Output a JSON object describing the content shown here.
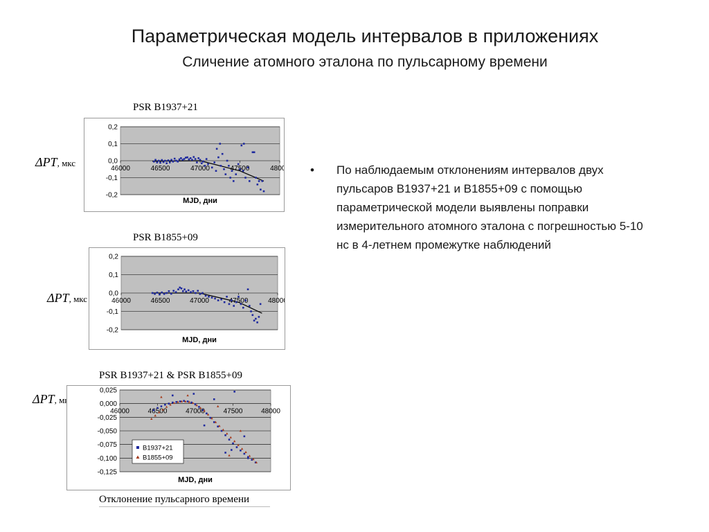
{
  "slide": {
    "title": "Параметрическая модель интервалов в приложениях",
    "subtitle": "Сличение атомного эталона по пульсарному времени",
    "bullet_char": "•",
    "bullet": "По наблюдаемым отклонениям интервалов двух пульсаров B1937+21 и B1855+09 с помощью параметрической модели выявлены поправки измерительного атомного эталона с погрешностью 5-10 нс в 4-летнем промежутке наблюдений",
    "caption": "Отклонение пульсарного времени",
    "ylabel_symbol": "ΔPT",
    "ylabel_unit": ", мкс"
  },
  "colors": {
    "plot_bg": "#c0c0c0",
    "frame": "#9a9a9a",
    "series1": "#1f2a9e",
    "series2": "#a63a1a",
    "trend": "#000000"
  },
  "chart_data": [
    {
      "type": "scatter",
      "title": "PSR B1937+21",
      "xlabel": "MJD, дни",
      "xlim": [
        46000,
        48000
      ],
      "ylim": [
        -0.2,
        0.2
      ],
      "x_ticks": [
        "46000",
        "46500",
        "47000",
        "47500",
        "48000"
      ],
      "y_ticks": [
        "0,2",
        "0,1",
        "0,0",
        "-0,1",
        "-0,2"
      ],
      "grid": true,
      "series": [
        {
          "points": [
            [
              46420,
              -0.005
            ],
            [
              46440,
              0.005
            ],
            [
              46460,
              -0.01
            ],
            [
              46480,
              0.0
            ],
            [
              46500,
              -0.012
            ],
            [
              46520,
              0.004
            ],
            [
              46540,
              -0.008
            ],
            [
              46560,
              0.0
            ],
            [
              46580,
              -0.015
            ],
            [
              46600,
              0.002
            ],
            [
              46620,
              -0.01
            ],
            [
              46640,
              0.005
            ],
            [
              46660,
              -0.005
            ],
            [
              46680,
              0.012
            ],
            [
              46700,
              0.0
            ],
            [
              46720,
              -0.005
            ],
            [
              46740,
              0.008
            ],
            [
              46760,
              0.015
            ],
            [
              46780,
              0.005
            ],
            [
              46800,
              0.01
            ],
            [
              46820,
              0.018
            ],
            [
              46840,
              0.02
            ],
            [
              46860,
              0.008
            ],
            [
              46880,
              0.015
            ],
            [
              46900,
              0.005
            ],
            [
              46920,
              0.022
            ],
            [
              46940,
              0.01
            ],
            [
              46960,
              -0.01
            ],
            [
              46980,
              0.015
            ],
            [
              47000,
              0.005
            ],
            [
              47020,
              -0.015
            ],
            [
              47040,
              -0.005
            ],
            [
              47060,
              -0.03
            ],
            [
              47080,
              0.01
            ],
            [
              47100,
              -0.02
            ],
            [
              47150,
              -0.04
            ],
            [
              47180,
              -0.01
            ],
            [
              47200,
              -0.06
            ],
            [
              47210,
              0.07
            ],
            [
              47230,
              0.02
            ],
            [
              47250,
              0.1
            ],
            [
              47260,
              -0.03
            ],
            [
              47280,
              0.04
            ],
            [
              47300,
              -0.05
            ],
            [
              47320,
              -0.08
            ],
            [
              47340,
              0.0
            ],
            [
              47360,
              -0.03
            ],
            [
              47380,
              -0.1
            ],
            [
              47400,
              -0.06
            ],
            [
              47420,
              -0.12
            ],
            [
              47450,
              -0.08
            ],
            [
              47480,
              -0.02
            ],
            [
              47500,
              -0.05
            ],
            [
              47520,
              0.09
            ],
            [
              47540,
              -0.06
            ],
            [
              47550,
              0.1
            ],
            [
              47570,
              -0.1
            ],
            [
              47600,
              -0.04
            ],
            [
              47620,
              -0.12
            ],
            [
              47660,
              0.05
            ],
            [
              47680,
              0.05
            ],
            [
              47700,
              -0.1
            ],
            [
              47720,
              -0.14
            ],
            [
              47740,
              -0.12
            ],
            [
              47760,
              -0.17
            ],
            [
              47780,
              -0.12
            ],
            [
              47800,
              -0.18
            ]
          ]
        }
      ],
      "trend": {
        "x": [
          46400,
          47000,
          47500,
          47800
        ],
        "y": [
          -0.003,
          0.0,
          -0.06,
          -0.12
        ]
      }
    },
    {
      "type": "scatter",
      "title": "PSR B1855+09",
      "xlabel": "MJD, дни",
      "xlim": [
        46000,
        48000
      ],
      "ylim": [
        -0.2,
        0.2
      ],
      "x_ticks": [
        "46000",
        "46500",
        "47000",
        "47500",
        "48000"
      ],
      "y_ticks": [
        "0,2",
        "0,1",
        "0,0",
        "-0,1",
        "-0,2"
      ],
      "grid": true,
      "series": [
        {
          "points": [
            [
              46400,
              0.0
            ],
            [
              46430,
              -0.005
            ],
            [
              46460,
              0.002
            ],
            [
              46490,
              -0.008
            ],
            [
              46520,
              0.003
            ],
            [
              46550,
              -0.005
            ],
            [
              46580,
              0.0
            ],
            [
              46610,
              0.01
            ],
            [
              46640,
              -0.004
            ],
            [
              46670,
              0.012
            ],
            [
              46700,
              0.005
            ],
            [
              46730,
              0.02
            ],
            [
              46750,
              0.03
            ],
            [
              46770,
              0.025
            ],
            [
              46790,
              0.01
            ],
            [
              46810,
              0.02
            ],
            [
              46830,
              0.008
            ],
            [
              46860,
              0.015
            ],
            [
              46890,
              0.005
            ],
            [
              46920,
              0.01
            ],
            [
              46950,
              0.0
            ],
            [
              46980,
              0.012
            ],
            [
              47010,
              -0.005
            ],
            [
              47040,
              0.0
            ],
            [
              47080,
              -0.015
            ],
            [
              47120,
              -0.02
            ],
            [
              47160,
              -0.025
            ],
            [
              47200,
              -0.03
            ],
            [
              47240,
              -0.04
            ],
            [
              47280,
              -0.035
            ],
            [
              47320,
              -0.05
            ],
            [
              47350,
              -0.02
            ],
            [
              47380,
              -0.06
            ],
            [
              47410,
              -0.04
            ],
            [
              47440,
              -0.07
            ],
            [
              47470,
              -0.05
            ],
            [
              47500,
              -0.02
            ],
            [
              47530,
              -0.06
            ],
            [
              47560,
              -0.08
            ],
            [
              47590,
              -0.04
            ],
            [
              47620,
              0.02
            ],
            [
              47640,
              -0.07
            ],
            [
              47660,
              -0.1
            ],
            [
              47680,
              -0.12
            ],
            [
              47700,
              -0.15
            ],
            [
              47720,
              -0.14
            ],
            [
              47740,
              -0.16
            ],
            [
              47760,
              -0.13
            ],
            [
              47780,
              -0.06
            ]
          ]
        }
      ],
      "trend": {
        "x": [
          46400,
          47000,
          47500,
          47800
        ],
        "y": [
          0.0,
          0.0,
          -0.05,
          -0.11
        ]
      }
    },
    {
      "type": "scatter",
      "title": "PSR B1937+21 & PSR B1855+09",
      "xlabel": "MJD, дни",
      "xlim": [
        46000,
        48000
      ],
      "ylim": [
        -0.125,
        0.025
      ],
      "x_ticks": [
        "46000",
        "46500",
        "47000",
        "47500",
        "48000"
      ],
      "y_ticks": [
        "0,025",
        "0,000",
        "-0,025",
        "-0,050",
        "-0,075",
        "-0,100",
        "-0,125"
      ],
      "grid": true,
      "legend": "center-left",
      "series": [
        {
          "name": "B1937+21",
          "marker": "square",
          "points": [
            [
              46450,
              -0.012
            ],
            [
              46500,
              -0.008
            ],
            [
              46550,
              -0.005
            ],
            [
              46600,
              -0.002
            ],
            [
              46650,
              0.0
            ],
            [
              46700,
              0.002
            ],
            [
              46750,
              0.003
            ],
            [
              46800,
              0.004
            ],
            [
              46850,
              0.005
            ],
            [
              46900,
              0.004
            ],
            [
              46950,
              0.002
            ],
            [
              47000,
              -0.001
            ],
            [
              47050,
              -0.006
            ],
            [
              47100,
              -0.012
            ],
            [
              47150,
              -0.018
            ],
            [
              47200,
              -0.026
            ],
            [
              47250,
              -0.034
            ],
            [
              47300,
              -0.042
            ],
            [
              47350,
              -0.05
            ],
            [
              47400,
              -0.058
            ],
            [
              47450,
              -0.066
            ],
            [
              47500,
              -0.073
            ],
            [
              47550,
              -0.08
            ],
            [
              47600,
              -0.086
            ],
            [
              47650,
              -0.092
            ],
            [
              47700,
              -0.098
            ],
            [
              47750,
              -0.103
            ],
            [
              47800,
              -0.108
            ],
            [
              46700,
              0.015
            ],
            [
              46980,
              0.018
            ],
            [
              47120,
              -0.04
            ],
            [
              47250,
              0.008
            ],
            [
              47400,
              -0.09
            ],
            [
              47520,
              0.022
            ],
            [
              47480,
              -0.085
            ],
            [
              47650,
              -0.06
            ],
            [
              47700,
              -0.1
            ]
          ]
        },
        {
          "name": "B1855+09",
          "marker": "triangle",
          "points": [
            [
              46420,
              -0.028
            ],
            [
              46470,
              -0.022
            ],
            [
              46520,
              -0.016
            ],
            [
              46570,
              -0.011
            ],
            [
              46620,
              -0.006
            ],
            [
              46670,
              -0.002
            ],
            [
              46720,
              0.001
            ],
            [
              46770,
              0.003
            ],
            [
              46820,
              0.004
            ],
            [
              46870,
              0.004
            ],
            [
              46920,
              0.003
            ],
            [
              46970,
              0.001
            ],
            [
              47020,
              -0.003
            ],
            [
              47070,
              -0.008
            ],
            [
              47120,
              -0.013
            ],
            [
              47170,
              -0.02
            ],
            [
              47220,
              -0.027
            ],
            [
              47270,
              -0.034
            ],
            [
              47320,
              -0.041
            ],
            [
              47370,
              -0.048
            ],
            [
              47420,
              -0.055
            ],
            [
              47470,
              -0.062
            ],
            [
              47520,
              -0.069
            ],
            [
              47570,
              -0.076
            ],
            [
              47620,
              -0.083
            ],
            [
              47670,
              -0.089
            ],
            [
              47720,
              -0.096
            ],
            [
              47770,
              -0.102
            ],
            [
              47810,
              -0.108
            ],
            [
              46550,
              0.012
            ],
            [
              46900,
              0.015
            ],
            [
              47300,
              -0.005
            ],
            [
              47600,
              -0.05
            ],
            [
              47450,
              -0.095
            ]
          ]
        }
      ]
    }
  ]
}
